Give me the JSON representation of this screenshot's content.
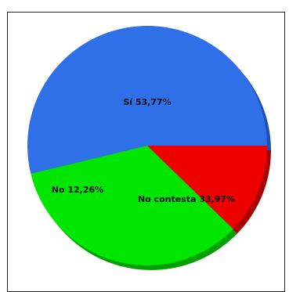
{
  "chart_data": {
    "type": "pie",
    "title": "",
    "slices": [
      {
        "label": "Sí 53,77%",
        "value": 53.77,
        "color": "#2f6fe8",
        "shadow": "#1f4fb0"
      },
      {
        "label": "No contesta 33,97%",
        "value": 33.97,
        "color": "#00e600",
        "shadow": "#00a000"
      },
      {
        "label": "No 12,26%",
        "value": 12.26,
        "color": "#ee0000",
        "shadow": "#a80000"
      }
    ],
    "start_angle_deg": 0,
    "direction": "counterclockwise",
    "three_d": true
  }
}
